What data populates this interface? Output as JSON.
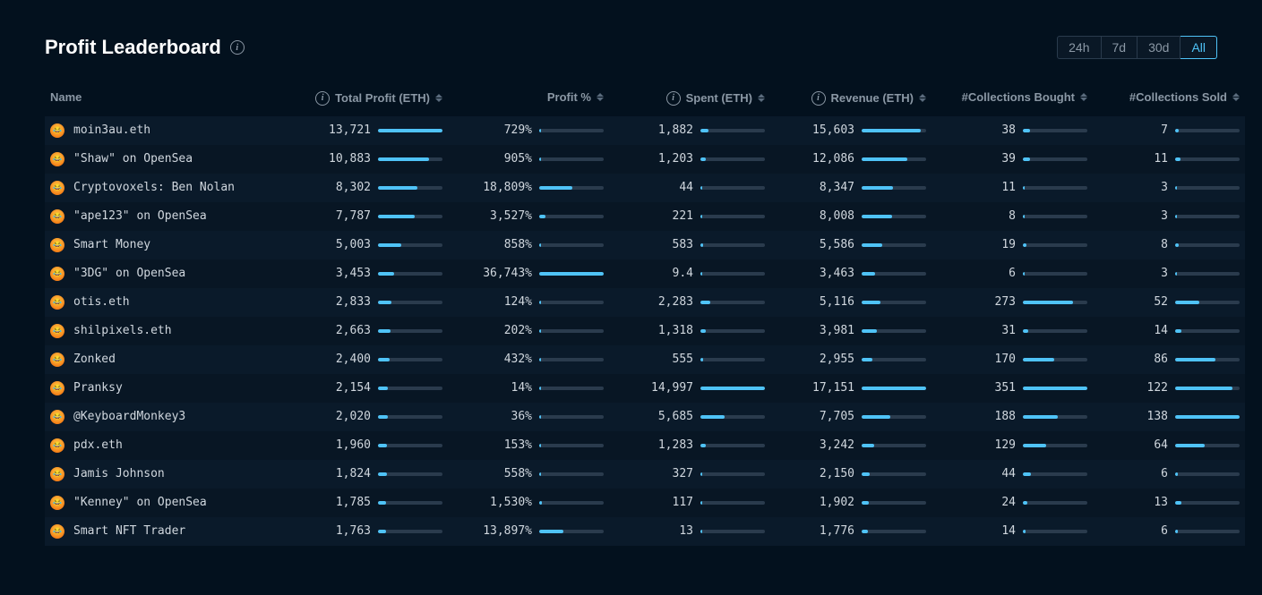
{
  "title": "Profit Leaderboard",
  "colors": {
    "background": "#03111e",
    "row_odd": "#0a1a2a",
    "row_even": "#081624",
    "bar_track": "#2a3b4d",
    "bar_fill": "#4fc3f7",
    "text_primary": "#d0d7de",
    "text_muted": "#8b98a5",
    "accent": "#4fc3f7"
  },
  "time_tabs": [
    {
      "label": "24h",
      "active": false
    },
    {
      "label": "7d",
      "active": false
    },
    {
      "label": "30d",
      "active": false
    },
    {
      "label": "All",
      "active": true
    }
  ],
  "columns": [
    {
      "key": "name",
      "label": "Name",
      "has_info": false,
      "sortable": false
    },
    {
      "key": "total_profit",
      "label": "Total Profit (ETH)",
      "has_info": true,
      "sortable": true
    },
    {
      "key": "profit_pct",
      "label": "Profit %",
      "has_info": false,
      "sortable": true
    },
    {
      "key": "spent",
      "label": "Spent (ETH)",
      "has_info": true,
      "sortable": true
    },
    {
      "key": "revenue",
      "label": "Revenue (ETH)",
      "has_info": true,
      "sortable": true
    },
    {
      "key": "bought",
      "label": "#Collections Bought",
      "has_info": false,
      "sortable": true
    },
    {
      "key": "sold",
      "label": "#Collections Sold",
      "has_info": false,
      "sortable": true
    }
  ],
  "col_max": {
    "total_profit": 13721,
    "profit_pct": 36743,
    "spent": 14997,
    "revenue": 17151,
    "bought": 351,
    "sold": 138
  },
  "rows": [
    {
      "name": "moin3au.eth",
      "total_profit": "13,721",
      "total_profit_v": 13721,
      "profit_pct": "729%",
      "profit_pct_v": 729,
      "spent": "1,882",
      "spent_v": 1882,
      "revenue": "15,603",
      "revenue_v": 15603,
      "bought": "38",
      "bought_v": 38,
      "sold": "7",
      "sold_v": 7
    },
    {
      "name": "\"Shaw\" on OpenSea",
      "total_profit": "10,883",
      "total_profit_v": 10883,
      "profit_pct": "905%",
      "profit_pct_v": 905,
      "spent": "1,203",
      "spent_v": 1203,
      "revenue": "12,086",
      "revenue_v": 12086,
      "bought": "39",
      "bought_v": 39,
      "sold": "11",
      "sold_v": 11
    },
    {
      "name": "Cryptovoxels: Ben Nolan",
      "total_profit": "8,302",
      "total_profit_v": 8302,
      "profit_pct": "18,809%",
      "profit_pct_v": 18809,
      "spent": "44",
      "spent_v": 44,
      "revenue": "8,347",
      "revenue_v": 8347,
      "bought": "11",
      "bought_v": 11,
      "sold": "3",
      "sold_v": 3
    },
    {
      "name": "\"ape123\" on OpenSea",
      "total_profit": "7,787",
      "total_profit_v": 7787,
      "profit_pct": "3,527%",
      "profit_pct_v": 3527,
      "spent": "221",
      "spent_v": 221,
      "revenue": "8,008",
      "revenue_v": 8008,
      "bought": "8",
      "bought_v": 8,
      "sold": "3",
      "sold_v": 3
    },
    {
      "name": "Smart Money",
      "total_profit": "5,003",
      "total_profit_v": 5003,
      "profit_pct": "858%",
      "profit_pct_v": 858,
      "spent": "583",
      "spent_v": 583,
      "revenue": "5,586",
      "revenue_v": 5586,
      "bought": "19",
      "bought_v": 19,
      "sold": "8",
      "sold_v": 8
    },
    {
      "name": "\"3DG\" on OpenSea",
      "total_profit": "3,453",
      "total_profit_v": 3453,
      "profit_pct": "36,743%",
      "profit_pct_v": 36743,
      "spent": "9.4",
      "spent_v": 9.4,
      "revenue": "3,463",
      "revenue_v": 3463,
      "bought": "6",
      "bought_v": 6,
      "sold": "3",
      "sold_v": 3
    },
    {
      "name": "otis.eth",
      "total_profit": "2,833",
      "total_profit_v": 2833,
      "profit_pct": "124%",
      "profit_pct_v": 124,
      "spent": "2,283",
      "spent_v": 2283,
      "revenue": "5,116",
      "revenue_v": 5116,
      "bought": "273",
      "bought_v": 273,
      "sold": "52",
      "sold_v": 52
    },
    {
      "name": "shilpixels.eth",
      "total_profit": "2,663",
      "total_profit_v": 2663,
      "profit_pct": "202%",
      "profit_pct_v": 202,
      "spent": "1,318",
      "spent_v": 1318,
      "revenue": "3,981",
      "revenue_v": 3981,
      "bought": "31",
      "bought_v": 31,
      "sold": "14",
      "sold_v": 14
    },
    {
      "name": "Zonked",
      "total_profit": "2,400",
      "total_profit_v": 2400,
      "profit_pct": "432%",
      "profit_pct_v": 432,
      "spent": "555",
      "spent_v": 555,
      "revenue": "2,955",
      "revenue_v": 2955,
      "bought": "170",
      "bought_v": 170,
      "sold": "86",
      "sold_v": 86
    },
    {
      "name": "Pranksy",
      "total_profit": "2,154",
      "total_profit_v": 2154,
      "profit_pct": "14%",
      "profit_pct_v": 14,
      "spent": "14,997",
      "spent_v": 14997,
      "revenue": "17,151",
      "revenue_v": 17151,
      "bought": "351",
      "bought_v": 351,
      "sold": "122",
      "sold_v": 122
    },
    {
      "name": "@KeyboardMonkey3",
      "total_profit": "2,020",
      "total_profit_v": 2020,
      "profit_pct": "36%",
      "profit_pct_v": 36,
      "spent": "5,685",
      "spent_v": 5685,
      "revenue": "7,705",
      "revenue_v": 7705,
      "bought": "188",
      "bought_v": 188,
      "sold": "138",
      "sold_v": 138
    },
    {
      "name": "pdx.eth",
      "total_profit": "1,960",
      "total_profit_v": 1960,
      "profit_pct": "153%",
      "profit_pct_v": 153,
      "spent": "1,283",
      "spent_v": 1283,
      "revenue": "3,242",
      "revenue_v": 3242,
      "bought": "129",
      "bought_v": 129,
      "sold": "64",
      "sold_v": 64
    },
    {
      "name": "Jamis Johnson",
      "total_profit": "1,824",
      "total_profit_v": 1824,
      "profit_pct": "558%",
      "profit_pct_v": 558,
      "spent": "327",
      "spent_v": 327,
      "revenue": "2,150",
      "revenue_v": 2150,
      "bought": "44",
      "bought_v": 44,
      "sold": "6",
      "sold_v": 6
    },
    {
      "name": "\"Kenney\" on OpenSea",
      "total_profit": "1,785",
      "total_profit_v": 1785,
      "profit_pct": "1,530%",
      "profit_pct_v": 1530,
      "spent": "117",
      "spent_v": 117,
      "revenue": "1,902",
      "revenue_v": 1902,
      "bought": "24",
      "bought_v": 24,
      "sold": "13",
      "sold_v": 13
    },
    {
      "name": "Smart NFT Trader",
      "total_profit": "1,763",
      "total_profit_v": 1763,
      "profit_pct": "13,897%",
      "profit_pct_v": 13897,
      "spent": "13",
      "spent_v": 13,
      "revenue": "1,776",
      "revenue_v": 1776,
      "bought": "14",
      "bought_v": 14,
      "sold": "6",
      "sold_v": 6
    }
  ]
}
